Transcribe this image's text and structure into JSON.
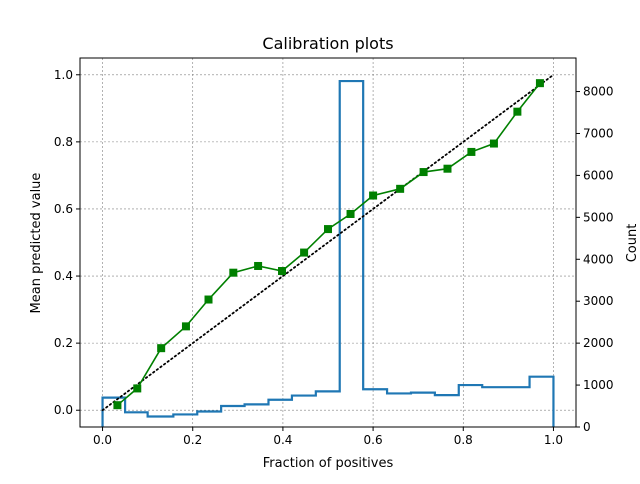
{
  "chart_data": {
    "type": "line",
    "title": "Calibration plots",
    "xlabel": "Fraction of positives",
    "ylabel": "Mean predicted value",
    "y2label": "Count",
    "xlim": [
      -0.05,
      1.05
    ],
    "ylim": [
      -0.05,
      1.05
    ],
    "y2lim": [
      0,
      8800
    ],
    "x_ticks": [
      "0.0",
      "0.2",
      "0.4",
      "0.6",
      "0.8",
      "1.0"
    ],
    "x_tick_values": [
      0.0,
      0.2,
      0.4,
      0.6,
      0.8,
      1.0
    ],
    "y_ticks": [
      "0.0",
      "0.2",
      "0.4",
      "0.6",
      "0.8",
      "1.0"
    ],
    "y_tick_values": [
      0.0,
      0.2,
      0.4,
      0.6,
      0.8,
      1.0
    ],
    "y2_ticks": [
      "0",
      "1000",
      "2000",
      "3000",
      "4000",
      "5000",
      "6000",
      "7000",
      "8000"
    ],
    "y2_tick_values": [
      0,
      1000,
      2000,
      3000,
      4000,
      5000,
      6000,
      7000,
      8000
    ],
    "grid": true,
    "reference_line": {
      "x": [
        0.0,
        1.0
      ],
      "y": [
        0.0,
        1.0
      ],
      "color": "#000000",
      "style": "dotted"
    },
    "series": [
      {
        "color": "#008000",
        "marker": "square",
        "x": [
          0.033,
          0.077,
          0.13,
          0.185,
          0.235,
          0.29,
          0.345,
          0.398,
          0.447,
          0.5,
          0.55,
          0.6,
          0.66,
          0.712,
          0.765,
          0.818,
          0.868,
          0.92,
          0.97
        ],
        "y": [
          0.015,
          0.065,
          0.185,
          0.25,
          0.33,
          0.41,
          0.43,
          0.415,
          0.47,
          0.54,
          0.585,
          0.64,
          0.66,
          0.71,
          0.72,
          0.77,
          0.795,
          0.89,
          0.975
        ]
      }
    ],
    "histogram": {
      "color": "#1f77b4",
      "axis": "right",
      "edges": [
        0.0,
        0.05,
        0.1,
        0.157,
        0.21,
        0.263,
        0.315,
        0.368,
        0.42,
        0.473,
        0.526,
        0.578,
        0.631,
        0.684,
        0.737,
        0.79,
        0.842,
        0.895,
        0.947,
        1.0
      ],
      "counts": [
        700,
        350,
        250,
        300,
        370,
        500,
        540,
        650,
        750,
        850,
        8250,
        900,
        800,
        820,
        760,
        1000,
        950,
        950,
        1200
      ]
    }
  }
}
